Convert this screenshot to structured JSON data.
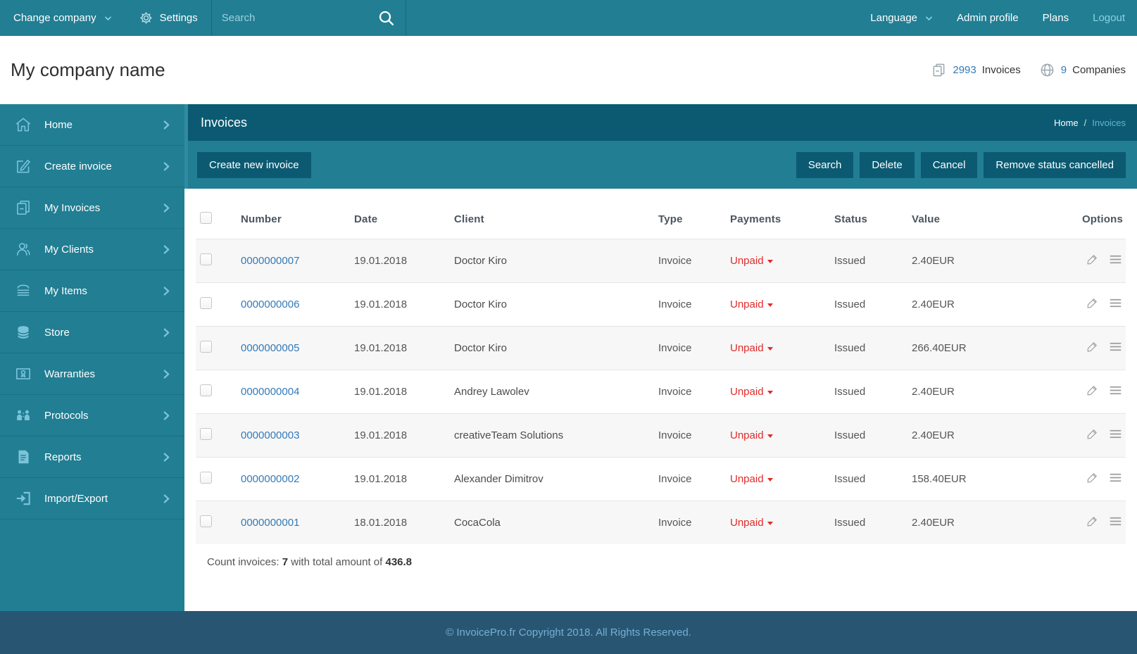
{
  "topbar": {
    "change_company": "Change company",
    "settings": "Settings",
    "search_placeholder": "Search",
    "language": "Language",
    "admin_profile": "Admin profile",
    "plans": "Plans",
    "logout": "Logout"
  },
  "header": {
    "company_name": "My company name",
    "invoices_count": "2993",
    "invoices_label": "Invoices",
    "companies_count": "9",
    "companies_label": "Companies"
  },
  "sidebar": {
    "items": [
      {
        "label": "Home",
        "icon": "home-icon"
      },
      {
        "label": "Create invoice",
        "icon": "create-invoice-icon"
      },
      {
        "label": "My Invoices",
        "icon": "my-invoices-icon"
      },
      {
        "label": "My Clients",
        "icon": "my-clients-icon"
      },
      {
        "label": "My Items",
        "icon": "my-items-icon"
      },
      {
        "label": "Store",
        "icon": "store-icon"
      },
      {
        "label": "Warranties",
        "icon": "warranties-icon"
      },
      {
        "label": "Protocols",
        "icon": "protocols-icon"
      },
      {
        "label": "Reports",
        "icon": "reports-icon"
      },
      {
        "label": "Import/Export",
        "icon": "import-export-icon"
      }
    ]
  },
  "panel": {
    "title": "Invoices",
    "breadcrumb_home": "Home",
    "breadcrumb_sep": "/",
    "breadcrumb_current": "Invoices"
  },
  "toolbar": {
    "create_new_invoice": "Create new invoice",
    "search": "Search",
    "delete": "Delete",
    "cancel": "Cancel",
    "remove_status_cancelled": "Remove status cancelled"
  },
  "table": {
    "columns": [
      "Number",
      "Date",
      "Client",
      "Type",
      "Payments",
      "Status",
      "Value",
      "Options"
    ],
    "rows": [
      {
        "number": "0000000007",
        "date": "19.01.2018",
        "client": "Doctor Kiro",
        "type": "Invoice",
        "payments": "Unpaid",
        "status": "Issued",
        "value": "2.40EUR"
      },
      {
        "number": "0000000006",
        "date": "19.01.2018",
        "client": "Doctor Kiro",
        "type": "Invoice",
        "payments": "Unpaid",
        "status": "Issued",
        "value": "2.40EUR"
      },
      {
        "number": "0000000005",
        "date": "19.01.2018",
        "client": "Doctor Kiro",
        "type": "Invoice",
        "payments": "Unpaid",
        "status": "Issued",
        "value": "266.40EUR"
      },
      {
        "number": "0000000004",
        "date": "19.01.2018",
        "client": "Andrey Lawolev",
        "type": "Invoice",
        "payments": "Unpaid",
        "status": "Issued",
        "value": "2.40EUR"
      },
      {
        "number": "0000000003",
        "date": "19.01.2018",
        "client": "creativeTeam Solutions",
        "type": "Invoice",
        "payments": "Unpaid",
        "status": "Issued",
        "value": "2.40EUR"
      },
      {
        "number": "0000000002",
        "date": "19.01.2018",
        "client": "Alexander Dimitrov",
        "type": "Invoice",
        "payments": "Unpaid",
        "status": "Issued",
        "value": "158.40EUR"
      },
      {
        "number": "0000000001",
        "date": "18.01.2018",
        "client": "CocaCola",
        "type": "Invoice",
        "payments": "Unpaid",
        "status": "Issued",
        "value": "2.40EUR"
      }
    ]
  },
  "summary": {
    "prefix": "Count invoices: ",
    "count": "7",
    "middle": " with total amount of ",
    "total": "436.8"
  },
  "footer": {
    "copyright": "© InvoicePro.fr Copyright 2018. All Rights Reserved."
  },
  "colors": {
    "teal": "#217E93",
    "teal_dark": "#0B5A72",
    "footer_bg": "#285672",
    "link_blue": "#337AB7",
    "unpaid_red": "#E02B2B",
    "sidebar_icon_blue": "#7AC3DA",
    "breadcrumb_current": "#5FB6D0"
  }
}
